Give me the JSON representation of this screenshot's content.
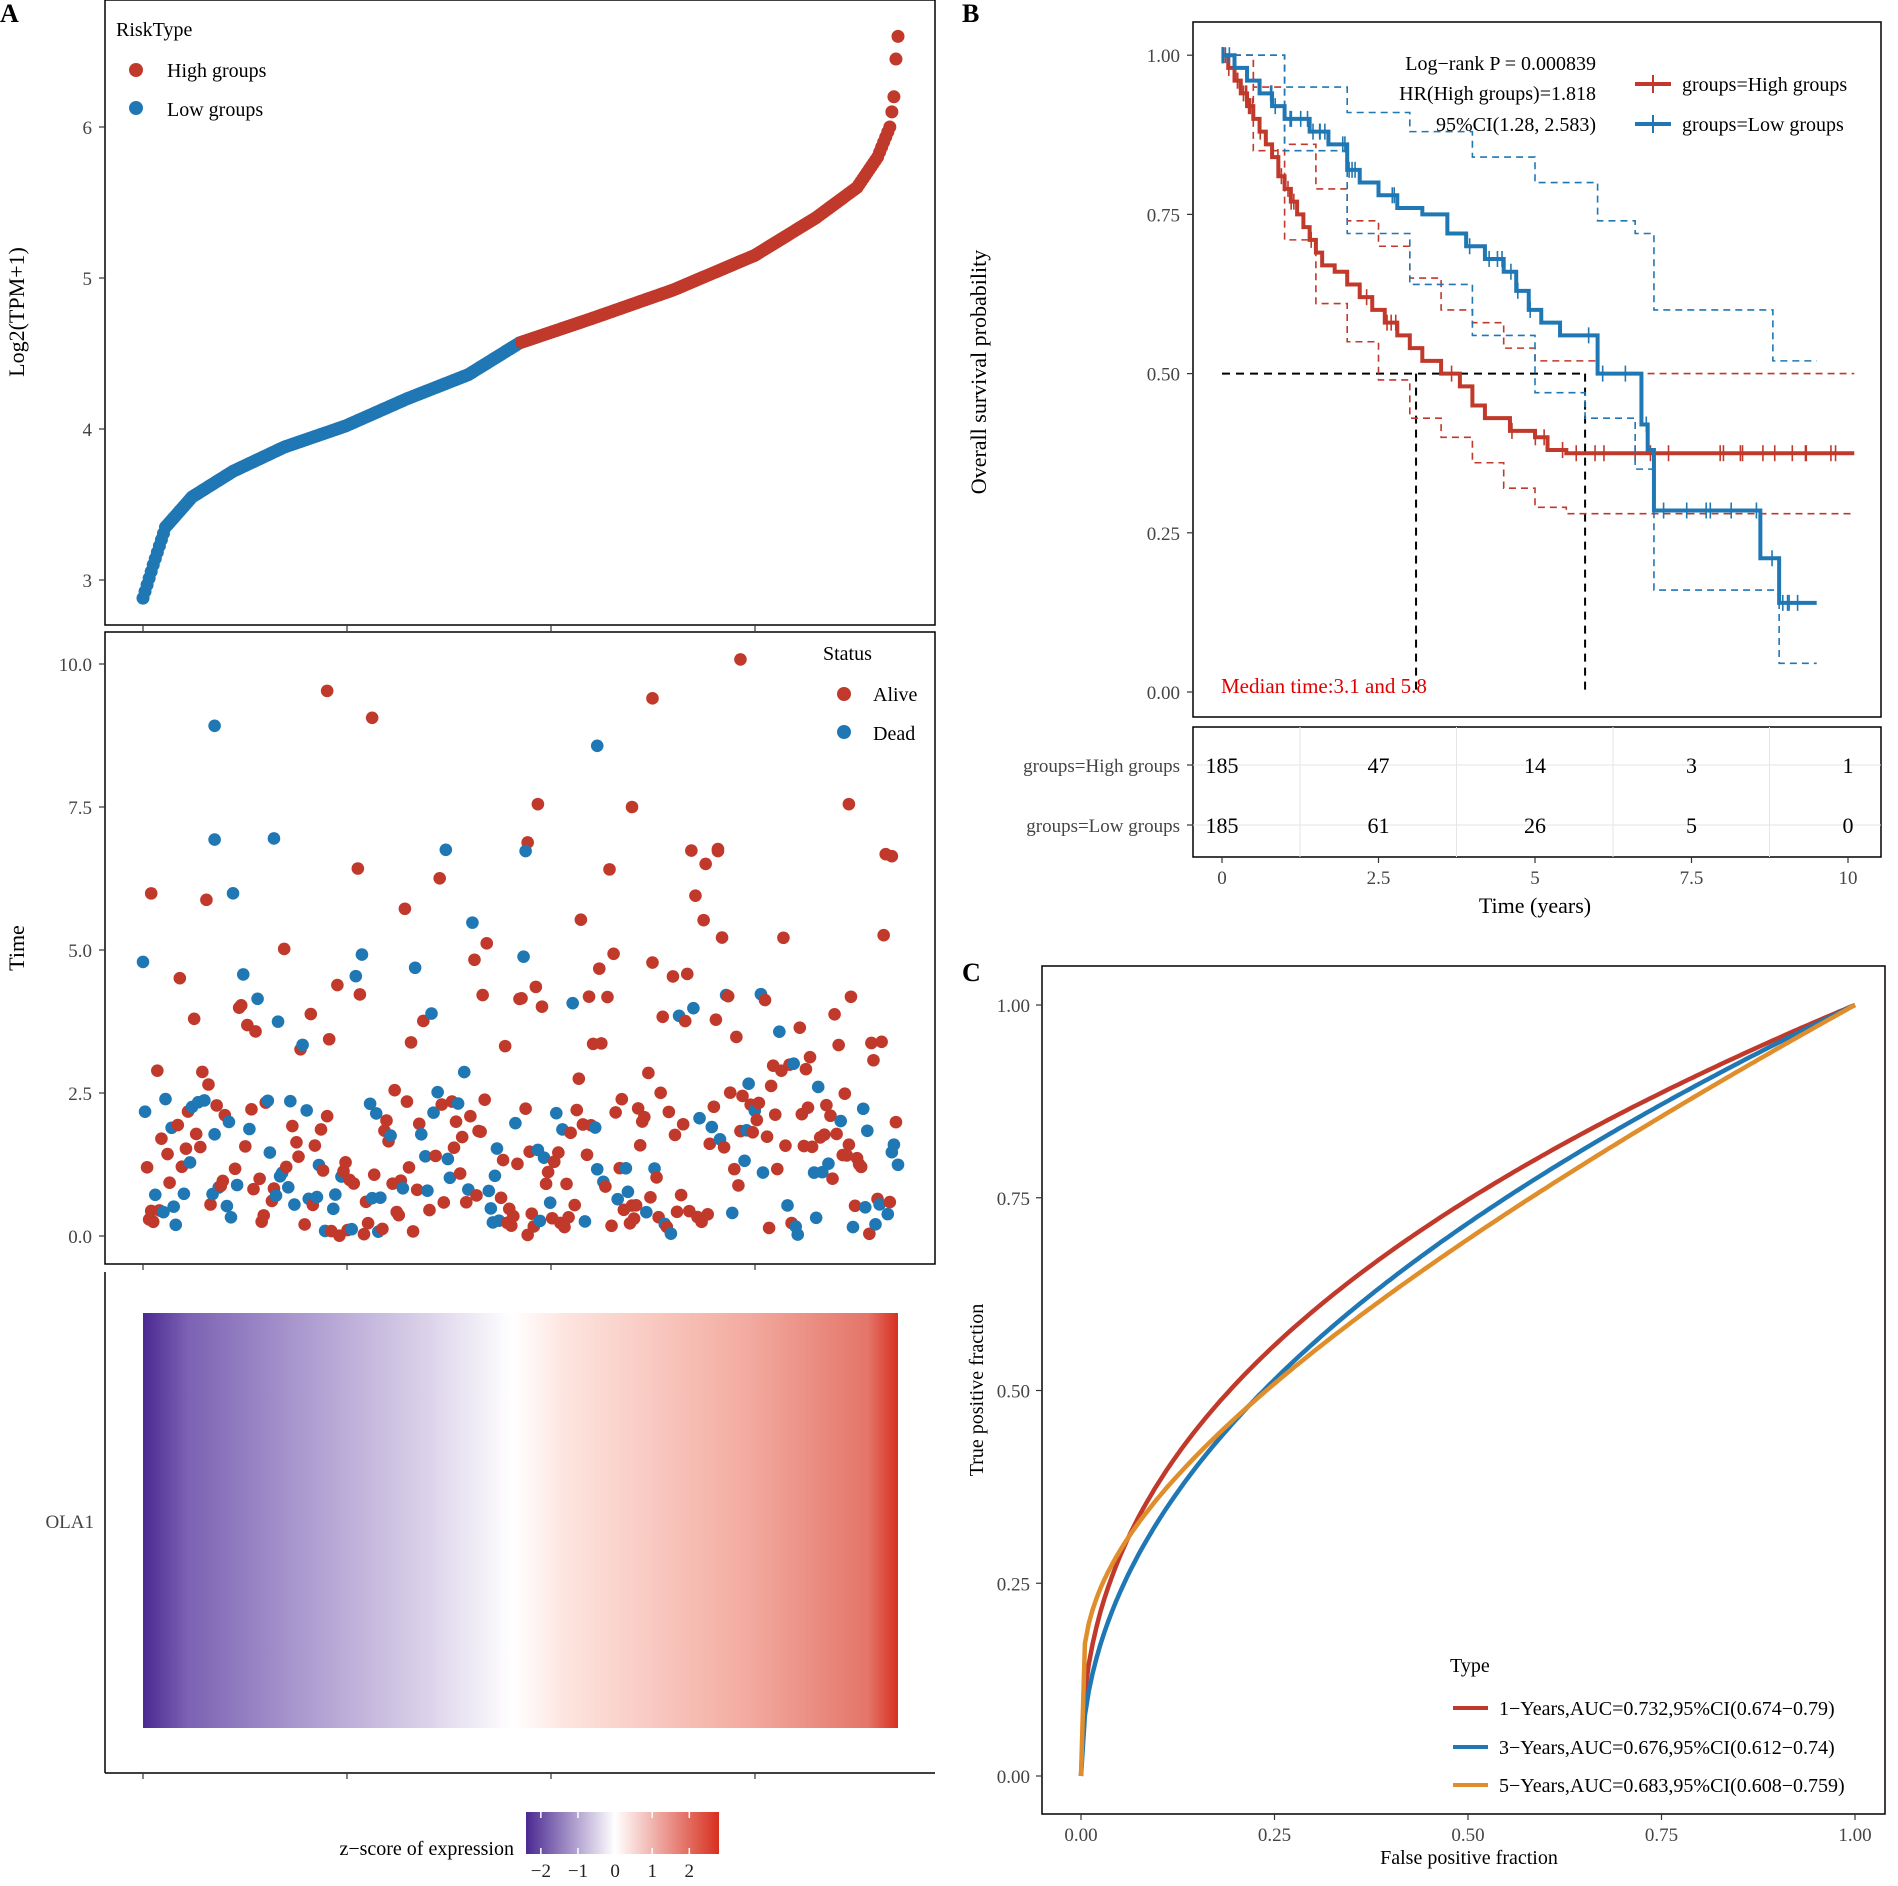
{
  "panels": {
    "a": "A",
    "b": "B",
    "c": "C"
  },
  "chart_data": [
    {
      "type": "scatter",
      "panel": "A-top",
      "ylabel": "Log2(TPM+1)",
      "yticks": [
        3,
        4,
        5,
        6
      ],
      "ylim": [
        2.7,
        6.8
      ],
      "n_samples": 370,
      "legend_title": "RiskType",
      "series": [
        {
          "name": "High groups",
          "color": "#C0392B",
          "rank_range": [
            186,
            370
          ],
          "value_range": [
            4.57,
            6.6
          ]
        },
        {
          "name": "Low groups",
          "color": "#1F77B4",
          "rank_range": [
            1,
            185
          ],
          "value_range": [
            2.88,
            4.57
          ]
        }
      ],
      "curve_points": [
        [
          1,
          2.88
        ],
        [
          6,
          3.1
        ],
        [
          12,
          3.35
        ],
        [
          25,
          3.55
        ],
        [
          45,
          3.72
        ],
        [
          70,
          3.88
        ],
        [
          100,
          4.02
        ],
        [
          130,
          4.2
        ],
        [
          160,
          4.36
        ],
        [
          185,
          4.57
        ],
        [
          220,
          4.73
        ],
        [
          260,
          4.92
        ],
        [
          300,
          5.15
        ],
        [
          330,
          5.4
        ],
        [
          350,
          5.6
        ],
        [
          360,
          5.8
        ],
        [
          366,
          6.0
        ],
        [
          368,
          6.2
        ],
        [
          369,
          6.45
        ],
        [
          370,
          6.6
        ]
      ]
    },
    {
      "type": "scatter",
      "panel": "A-middle",
      "ylabel": "Time",
      "yticks": [
        "0.0",
        "2.5",
        "5.0",
        "7.5",
        "10.0"
      ],
      "ylim": [
        -0.5,
        10.5
      ],
      "legend_title": "Status",
      "series": [
        {
          "name": "Alive",
          "color": "#C0392B"
        },
        {
          "name": "Dead",
          "color": "#1F77B4"
        }
      ],
      "highlighted_points": [
        {
          "status": "Alive",
          "rank": 293,
          "time": 10.08
        },
        {
          "status": "Alive",
          "rank": 91,
          "time": 9.53
        },
        {
          "status": "Alive",
          "rank": 250,
          "time": 9.4
        },
        {
          "status": "Alive",
          "rank": 113,
          "time": 9.06
        },
        {
          "status": "Dead",
          "rank": 36,
          "time": 8.92
        },
        {
          "status": "Dead",
          "rank": 223,
          "time": 8.57
        },
        {
          "status": "Alive",
          "rank": 194,
          "time": 7.55
        },
        {
          "status": "Alive",
          "rank": 346,
          "time": 7.55
        },
        {
          "status": "Alive",
          "rank": 240,
          "time": 7.5
        },
        {
          "status": "Dead",
          "rank": 65,
          "time": 6.95
        },
        {
          "status": "Dead",
          "rank": 36,
          "time": 6.93
        },
        {
          "status": "Alive",
          "rank": 189,
          "time": 6.88
        },
        {
          "status": "Dead",
          "rank": 188,
          "time": 6.73
        },
        {
          "status": "Alive",
          "rank": 282,
          "time": 6.73
        },
        {
          "status": "Alive",
          "rank": 367,
          "time": 6.64
        },
        {
          "status": "Alive",
          "rank": 5,
          "time": 5.99
        }
      ]
    },
    {
      "type": "heatmap",
      "panel": "A-bottom",
      "row_label": "OLA1",
      "colorbar_title": "z−score of expression",
      "colorbar_ticks": [
        "−2",
        "−1",
        "0",
        "1",
        "2"
      ],
      "colorbar_range": [
        -2.4,
        2.8
      ],
      "colors": {
        "low": "#4B2991",
        "mid": "#FFFFFF",
        "high": "#D7301F"
      }
    },
    {
      "type": "line",
      "panel": "B",
      "xlabel": "Time (years)",
      "ylabel": "Overall survival probability",
      "xticks": [
        "0",
        "2.5",
        "5",
        "7.5",
        "10"
      ],
      "yticks": [
        "0.00",
        "0.25",
        "0.50",
        "0.75",
        "1.00"
      ],
      "xlim": [
        -0.3,
        10.8
      ],
      "ylim": [
        -0.02,
        1.05
      ],
      "annotations": [
        "Log−rank P = 0.000839",
        "HR(High groups)=1.818",
        "95%CI(1.28, 2.583)"
      ],
      "median_text": "Median time:3.1 and 5.8",
      "median_times": [
        3.1,
        5.8
      ],
      "series": [
        {
          "name": "groups=High groups",
          "color": "#C0392B",
          "steps": [
            [
              0,
              1.0
            ],
            [
              0.1,
              0.98
            ],
            [
              0.2,
              0.96
            ],
            [
              0.3,
              0.94
            ],
            [
              0.4,
              0.92
            ],
            [
              0.5,
              0.9
            ],
            [
              0.6,
              0.88
            ],
            [
              0.7,
              0.86
            ],
            [
              0.8,
              0.84
            ],
            [
              0.9,
              0.81
            ],
            [
              1.0,
              0.79
            ],
            [
              1.1,
              0.77
            ],
            [
              1.2,
              0.75
            ],
            [
              1.3,
              0.73
            ],
            [
              1.4,
              0.71
            ],
            [
              1.5,
              0.69
            ],
            [
              1.6,
              0.67
            ],
            [
              1.8,
              0.66
            ],
            [
              2.0,
              0.64
            ],
            [
              2.2,
              0.62
            ],
            [
              2.4,
              0.6
            ],
            [
              2.6,
              0.58
            ],
            [
              2.8,
              0.56
            ],
            [
              3.0,
              0.54
            ],
            [
              3.2,
              0.52
            ],
            [
              3.5,
              0.5
            ],
            [
              3.8,
              0.48
            ],
            [
              4.0,
              0.45
            ],
            [
              4.2,
              0.43
            ],
            [
              4.6,
              0.41
            ],
            [
              5.0,
              0.4
            ],
            [
              5.2,
              0.38
            ],
            [
              5.5,
              0.375
            ],
            [
              7.0,
              0.375
            ],
            [
              10.1,
              0.375
            ]
          ],
          "ci_upper": [
            [
              0,
              1.0
            ],
            [
              0.5,
              0.95
            ],
            [
              1.0,
              0.86
            ],
            [
              1.5,
              0.79
            ],
            [
              2.0,
              0.74
            ],
            [
              2.5,
              0.7
            ],
            [
              3.0,
              0.65
            ],
            [
              3.5,
              0.6
            ],
            [
              4.0,
              0.58
            ],
            [
              4.5,
              0.54
            ],
            [
              5.0,
              0.52
            ],
            [
              6.0,
              0.5
            ],
            [
              10.1,
              0.5
            ]
          ],
          "ci_lower": [
            [
              0,
              1.0
            ],
            [
              0.5,
              0.85
            ],
            [
              1.0,
              0.71
            ],
            [
              1.5,
              0.61
            ],
            [
              2.0,
              0.55
            ],
            [
              2.5,
              0.49
            ],
            [
              3.0,
              0.43
            ],
            [
              3.5,
              0.4
            ],
            [
              4.0,
              0.36
            ],
            [
              4.5,
              0.32
            ],
            [
              5.0,
              0.29
            ],
            [
              5.5,
              0.28
            ],
            [
              10.1,
              0.28
            ]
          ]
        },
        {
          "name": "groups=Low groups",
          "color": "#1F77B4",
          "steps": [
            [
              0,
              1.0
            ],
            [
              0.2,
              0.98
            ],
            [
              0.4,
              0.96
            ],
            [
              0.6,
              0.94
            ],
            [
              0.8,
              0.92
            ],
            [
              1.0,
              0.9
            ],
            [
              1.4,
              0.88
            ],
            [
              1.7,
              0.86
            ],
            [
              2.0,
              0.82
            ],
            [
              2.2,
              0.8
            ],
            [
              2.5,
              0.78
            ],
            [
              2.8,
              0.76
            ],
            [
              3.2,
              0.75
            ],
            [
              3.6,
              0.72
            ],
            [
              3.9,
              0.7
            ],
            [
              4.2,
              0.68
            ],
            [
              4.5,
              0.66
            ],
            [
              4.7,
              0.63
            ],
            [
              4.9,
              0.6
            ],
            [
              5.1,
              0.58
            ],
            [
              5.4,
              0.56
            ],
            [
              5.8,
              0.56
            ],
            [
              6.0,
              0.5
            ],
            [
              6.6,
              0.5
            ],
            [
              6.7,
              0.42
            ],
            [
              6.8,
              0.38
            ],
            [
              6.9,
              0.285
            ],
            [
              8.5,
              0.285
            ],
            [
              8.6,
              0.21
            ],
            [
              8.9,
              0.14
            ],
            [
              9.5,
              0.14
            ]
          ],
          "ci_upper": [
            [
              0,
              1.0
            ],
            [
              1.0,
              0.95
            ],
            [
              2.0,
              0.91
            ],
            [
              3.0,
              0.88
            ],
            [
              4.0,
              0.84
            ],
            [
              5.0,
              0.8
            ],
            [
              6.0,
              0.74
            ],
            [
              6.6,
              0.72
            ],
            [
              6.9,
              0.6
            ],
            [
              8.5,
              0.6
            ],
            [
              8.8,
              0.52
            ],
            [
              9.5,
              0.52
            ]
          ],
          "ci_lower": [
            [
              0,
              1.0
            ],
            [
              1.0,
              0.85
            ],
            [
              2.0,
              0.72
            ],
            [
              3.0,
              0.64
            ],
            [
              4.0,
              0.56
            ],
            [
              5.0,
              0.47
            ],
            [
              5.8,
              0.43
            ],
            [
              6.6,
              0.35
            ],
            [
              6.9,
              0.16
            ],
            [
              8.5,
              0.16
            ],
            [
              8.9,
              0.045
            ],
            [
              9.5,
              0.045
            ]
          ]
        }
      ]
    },
    {
      "type": "table",
      "panel": "B-risk-table",
      "rows": [
        {
          "label": "groups=High groups",
          "values": [
            "185",
            "47",
            "14",
            "3",
            "1"
          ]
        },
        {
          "label": "groups=Low groups",
          "values": [
            "185",
            "61",
            "26",
            "5",
            "0"
          ]
        }
      ],
      "columns_x": [
        0,
        2.5,
        5,
        7.5,
        10
      ]
    },
    {
      "type": "line",
      "panel": "C",
      "xlabel": "False positive fraction",
      "ylabel": "True positive fraction",
      "xticks": [
        "0.00",
        "0.25",
        "0.50",
        "0.75",
        "1.00"
      ],
      "yticks": [
        "0.00",
        "0.25",
        "0.50",
        "0.75",
        "1.00"
      ],
      "xlim": [
        -0.05,
        1.05
      ],
      "ylim": [
        -0.05,
        1.05
      ],
      "legend_title": "Type",
      "series": [
        {
          "name": "1−Years,AUC=0.732,95%CI(0.674−0.79)",
          "color": "#C0392B",
          "auc": 0.732
        },
        {
          "name": "3−Years,AUC=0.676,95%CI(0.612−0.74)",
          "color": "#1F77B4",
          "auc": 0.676
        },
        {
          "name": "5−Years,AUC=0.683,95%CI(0.608−0.759)",
          "color": "#E08E2B",
          "auc": 0.683
        }
      ]
    }
  ]
}
